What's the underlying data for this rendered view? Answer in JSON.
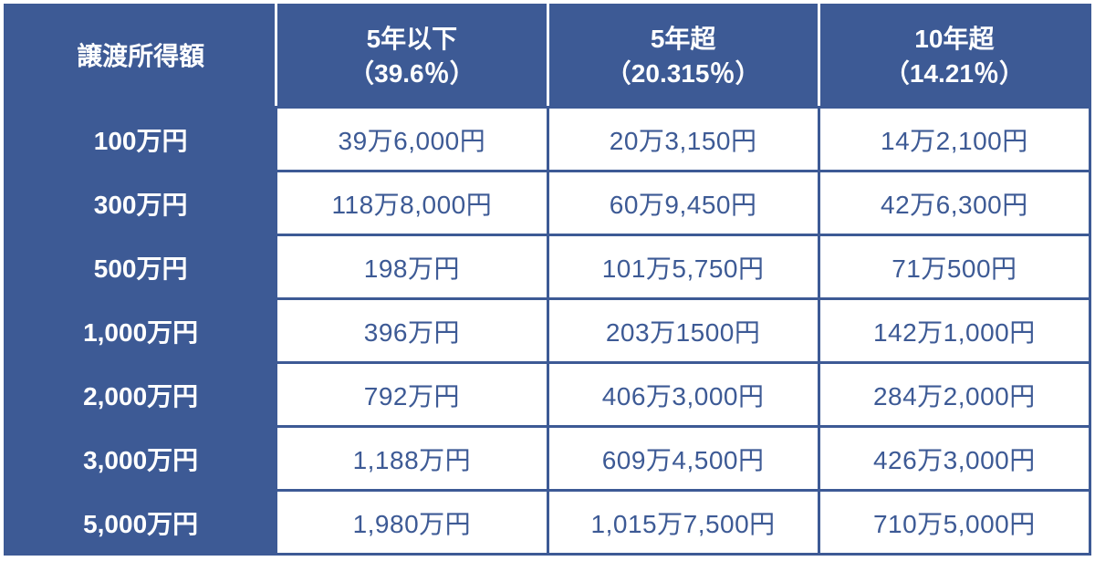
{
  "table": {
    "type": "table",
    "header_bg": "#3d5a95",
    "header_fg": "#ffffff",
    "cell_bg": "#ffffff",
    "cell_fg": "#3d5a95",
    "border_color": "#3d5a95",
    "header_col_separator": "#ffffff",
    "header_fontsize": 28,
    "cell_fontsize": 28,
    "header_fontweight": 700,
    "cell_fontweight": 400,
    "row_header_label": "譲渡所得額",
    "columns": [
      {
        "line1": "5年以下",
        "line2": "（39.6％）"
      },
      {
        "line1": "5年超",
        "line2": "（20.315％）"
      },
      {
        "line1": "10年超",
        "line2": "（14.21％）"
      }
    ],
    "rows": [
      {
        "label": "100万円",
        "cells": [
          "39万6,000円",
          "20万3,150円",
          "14万2,100円"
        ]
      },
      {
        "label": "300万円",
        "cells": [
          "118万8,000円",
          "60万9,450円",
          "42万6,300円"
        ]
      },
      {
        "label": "500万円",
        "cells": [
          "198万円",
          "101万5,750円",
          "71万500円"
        ]
      },
      {
        "label": "1,000万円",
        "cells": [
          "396万円",
          "203万1500円",
          "142万1,000円"
        ]
      },
      {
        "label": "2,000万円",
        "cells": [
          "792万円",
          "406万3,000円",
          "284万2,000円"
        ]
      },
      {
        "label": "3,000万円",
        "cells": [
          "1,188万円",
          "609万4,500円",
          "426万3,000円"
        ]
      },
      {
        "label": "5,000万円",
        "cells": [
          "1,980万円",
          "1,015万7,500円",
          "710万5,000円"
        ]
      }
    ]
  }
}
